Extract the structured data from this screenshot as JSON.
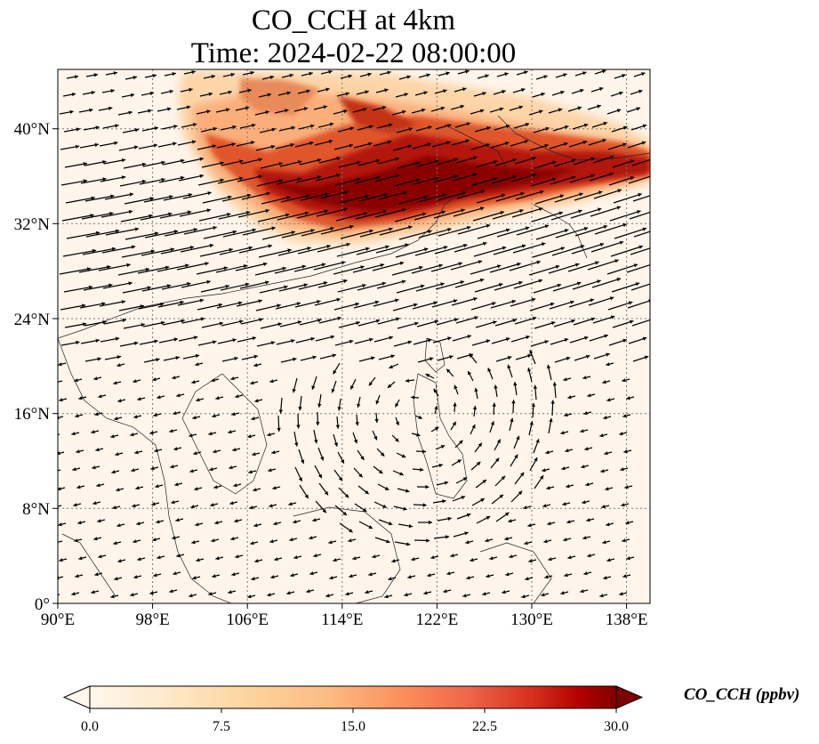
{
  "title": {
    "line1": "CO_CCH at 4km",
    "line2": "Time: 2024-02-22 08:00:00"
  },
  "map": {
    "lon_ticks": [
      "90°E",
      "98°E",
      "106°E",
      "114°E",
      "122°E",
      "130°E",
      "138°E"
    ],
    "lat_ticks": [
      "0°",
      "8°N",
      "16°N",
      "24°N",
      "32°N",
      "40°N"
    ],
    "lon_range": [
      90,
      140
    ],
    "lat_range": [
      0,
      45
    ],
    "gridlines": true,
    "gridline_style": "dotted",
    "vector_field": "wind",
    "colors": {
      "ocean_land_base": "#fff5eb",
      "plume_light": "#fdbf86",
      "plume_mid": "#e05a1a",
      "plume_dark": "#a30f06",
      "plume_core": "#7f0000"
    }
  },
  "colorbar": {
    "label": "CO_CCH (ppbv)",
    "ticks": [
      "0.0",
      "7.5",
      "15.0",
      "22.5",
      "30.0"
    ],
    "min": 0,
    "max": 30,
    "extend": "both",
    "colormap": "OrRd"
  }
}
